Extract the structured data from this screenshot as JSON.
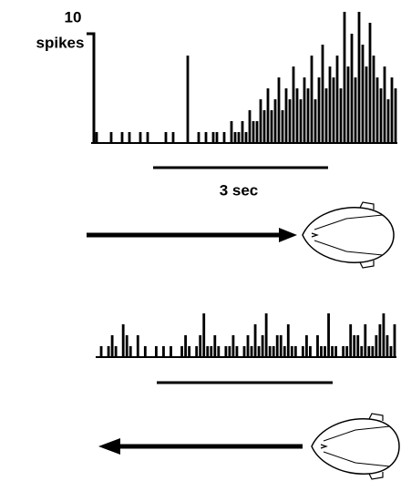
{
  "chart_data": [
    {
      "type": "bar",
      "values": [
        0,
        1,
        0,
        0,
        0,
        1,
        0,
        0,
        1,
        0,
        1,
        0,
        0,
        1,
        0,
        1,
        0,
        0,
        0,
        0,
        1,
        0,
        1,
        0,
        0,
        0,
        8,
        0,
        0,
        1,
        0,
        1,
        0,
        1,
        1,
        0,
        1,
        0,
        2,
        1,
        1,
        2,
        1,
        3,
        2,
        2,
        4,
        3,
        5,
        3,
        4,
        6,
        3,
        5,
        4,
        7,
        5,
        4,
        6,
        5,
        8,
        4,
        6,
        9,
        5,
        7,
        6,
        8,
        5,
        12,
        7,
        10,
        6,
        12,
        9,
        7,
        11,
        8,
        6,
        5,
        7,
        4,
        6,
        5
      ],
      "color": "#000000",
      "y_scale_bar": 10,
      "y_scale_label": "spikes",
      "x_scale_label": "3 sec"
    },
    {
      "type": "bar",
      "values": [
        0,
        1,
        0,
        1,
        2,
        1,
        0,
        3,
        2,
        1,
        0,
        2,
        0,
        1,
        0,
        0,
        1,
        0,
        1,
        0,
        1,
        0,
        0,
        1,
        2,
        1,
        0,
        1,
        2,
        4,
        1,
        1,
        2,
        1,
        0,
        1,
        1,
        2,
        1,
        0,
        1,
        2,
        1,
        3,
        1,
        2,
        4,
        1,
        1,
        2,
        2,
        1,
        3,
        1,
        1,
        0,
        1,
        2,
        1,
        0,
        2,
        1,
        1,
        4,
        1,
        1,
        0,
        1,
        1,
        3,
        2,
        2,
        1,
        3,
        1,
        1,
        2,
        3,
        4,
        2,
        1,
        3
      ],
      "color": "#000000"
    }
  ]
}
